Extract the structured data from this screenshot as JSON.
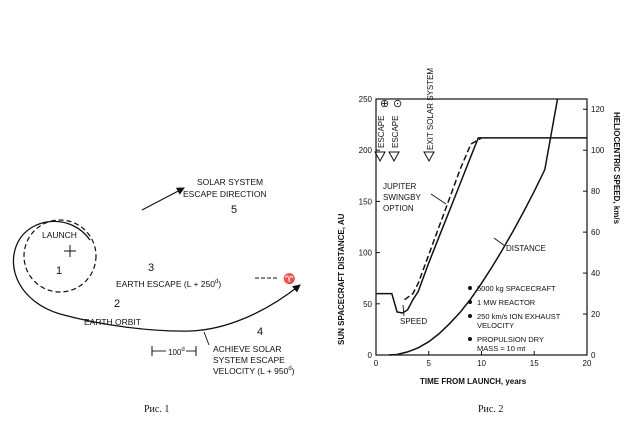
{
  "fig1": {
    "caption": "Рис. 1",
    "labels": {
      "launch": "LAUNCH",
      "n1": "1",
      "n2": "2",
      "n3": "3",
      "n4": "4",
      "n5": "5",
      "earth_escape": "EARTH ESCAPE (L + 250",
      "earth_escape_sup": "d",
      "earth_escape_close": ")",
      "aries": "♈",
      "earth_orbit": "EARTH ORBIT",
      "solar_dir_1": "SOLAR SYSTEM",
      "solar_dir_2": "ESCAPE DIRECTION",
      "achieve_1": "ACHIEVE SOLAR",
      "achieve_2": "SYSTEM ESCAPE",
      "achieve_3": "VELOCITY (L + 950",
      "achieve_3_sup": "d",
      "achieve_3_close": ")",
      "interval": "100",
      "interval_sup": "d"
    }
  },
  "fig2": {
    "caption": "Рис. 2",
    "chart_data": {
      "type": "line",
      "xlabel": "TIME FROM LAUNCH, years",
      "ylabel_left": "SUN SPACECRAFT DISTANCE, AU",
      "ylabel_right": "HELIOCENTRIC SPEED, km/s",
      "xlim": [
        0,
        20
      ],
      "ylim_left": [
        0,
        250
      ],
      "ylim_right": [
        0,
        125
      ],
      "x_ticks": [
        0,
        5,
        10,
        15,
        20
      ],
      "y_left_ticks": [
        0,
        50,
        100,
        150,
        200,
        250
      ],
      "y_right_ticks": [
        0,
        20,
        40,
        60,
        80,
        100,
        120
      ],
      "series": [
        {
          "name": "DISTANCE",
          "axis": "left",
          "style": "solid",
          "x": [
            1.2,
            2,
            3,
            4,
            5,
            6,
            7,
            8,
            9,
            10,
            11,
            12,
            13,
            14,
            15,
            16,
            17.2
          ],
          "y": [
            0,
            0.5,
            3,
            7,
            13,
            21,
            31,
            42,
            55,
            70,
            86,
            103,
            121,
            140,
            160,
            181,
            250
          ]
        },
        {
          "name": "SPEED",
          "axis": "right",
          "style": "solid",
          "x": [
            0,
            1.5,
            2,
            2.5,
            3,
            3.5,
            4,
            5,
            6,
            7,
            8,
            9,
            9.7,
            20
          ],
          "y": [
            30,
            30,
            21,
            20.5,
            22,
            27,
            31,
            45,
            58,
            71,
            84,
            97,
            106,
            106
          ]
        },
        {
          "name": "JUPITER SWINGBY OPTION",
          "axis": "right",
          "style": "dashed",
          "x": [
            2.7,
            3.5,
            4,
            5,
            6,
            7,
            8,
            9,
            10
          ],
          "y": [
            27,
            30,
            35,
            49,
            63,
            77,
            91,
            103,
            106
          ]
        }
      ],
      "event_labels": [
        "ESCAPE",
        "ESCAPE",
        "EXIT SOLAR SYSTEM"
      ],
      "event_symbols": [
        "⊕",
        "⊙"
      ],
      "annotations": {
        "jupiter": [
          "JUPITER",
          "SWINGBY",
          "OPTION"
        ],
        "distance": "DISTANCE",
        "speed": "SPEED"
      },
      "notes": [
        "5000 kg SPACECRAFT",
        "1 MW REACTOR",
        "250 km/s ION EXHAUST",
        "VELOCITY",
        "PROPULSION DRY",
        "MASS ≈ 10 mt"
      ]
    }
  }
}
